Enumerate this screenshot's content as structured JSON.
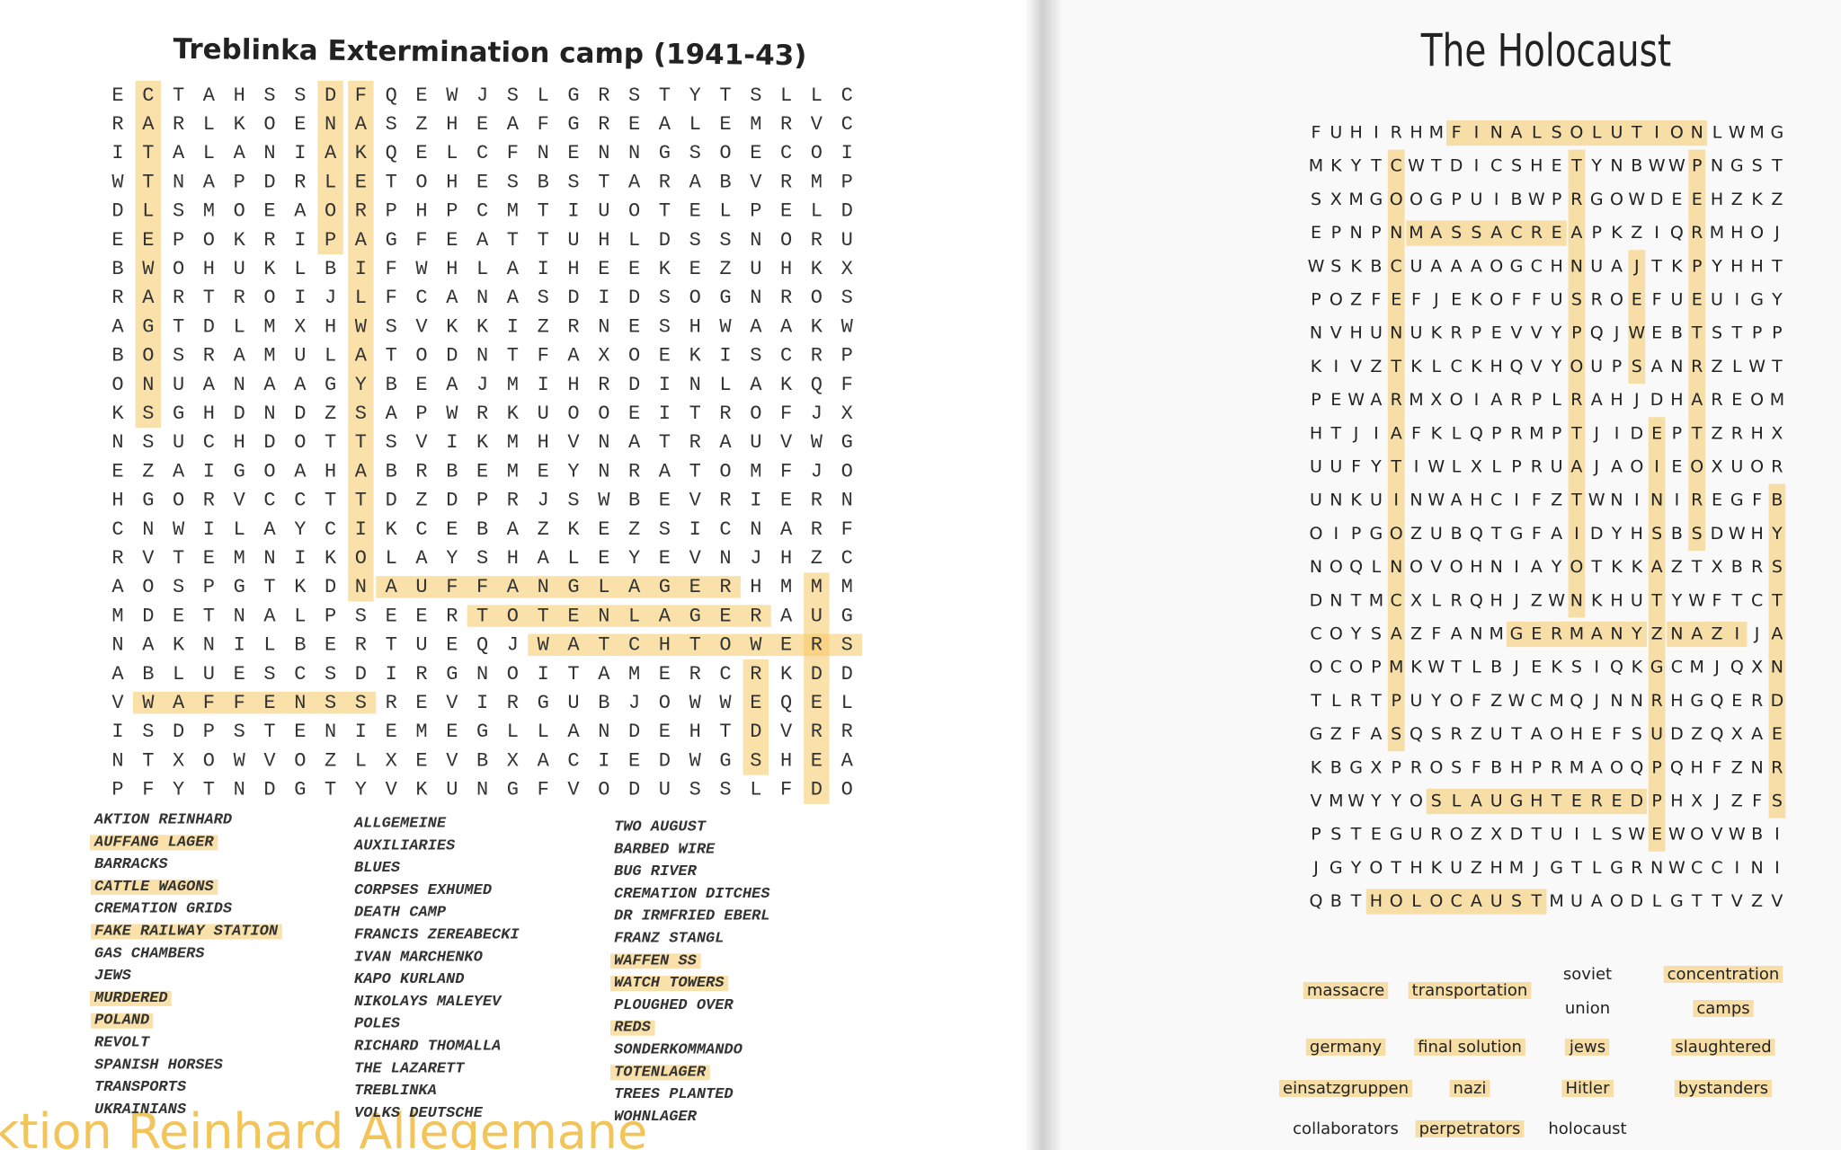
{
  "left": {
    "title": "Treblinka Extermination camp (1941-43)",
    "grid": [
      "ECTAHSSDFQEWJSLGRSTYTSLLC",
      "RARLKOENASZHEAFGREALEMRVC",
      "ITALANIAKQELCFNENNGSOECOI",
      "WTNAPDRLETOHESBSTARABVRMP",
      "DLSMOEAORPHPCMTIUOTELPELD",
      "EEPOKRIPAGFEATTUHLDSSNORU",
      "BWOHUKLBIFWHLAIHEEKEZUHKX",
      "RARTROIJLFCANASDIDSOGNROS",
      "AGTDLMXHWSVKKIZRNESHWAAKW",
      "BOSRAMULATODNTFAXOEKISCRP",
      "ONUANAAGYBEAJMIHRDINLAKQF",
      "KSGHDNDZSAPWRKUOOEITROFJX",
      "NSUCHDOTTSVIKMHVNATRAUVWG",
      "EZAIGOAHABRBEMEYNRATOMFJO",
      "HGORVCCTTDZDPRJSWBEVRIERN",
      "CNWILAYCIKCEBAZKEZSICNARF",
      "RVTEMNIKOLAYSHALEYEVNJHZC",
      "AOSPGTKDNAUFFANGLAGERHMMM",
      "MDETNALPSEERTOTENLAGERAUG",
      "NAKNILBERTUEQJWATCHTOWERS",
      "ABLUESCSDIRGNOITAMERCRKDD",
      "VWAFFENSSREVIRGUBJOWWEQEL",
      "ISDPSTENIEMEGLLANDEHTDVRR",
      "NTXOWVOZLXEVBXACIEDWGSHEA",
      "PFYTNDGTYVKUNGFVODUSSLFDO"
    ],
    "words": [
      [
        "AKTION REINHARD",
        "AUFFANG LAGER",
        "BARRACKS",
        "CATTLE WAGONS",
        "CREMATION GRIDS",
        "FAKE RAILWAY STATION",
        "GAS CHAMBERS",
        "JEWS",
        "MURDERED",
        "POLAND",
        "REVOLT",
        "SPANISH HORSES",
        "TRANSPORTS",
        "UKRAINIANS"
      ],
      [
        "ALLGEMEINE",
        "AUXILIARIES",
        "BLUES",
        "CORPSES EXHUMED",
        "DEATH CAMP",
        "FRANCIS ZEREABECKI",
        "IVAN MARCHENKO",
        "KAPO KURLAND",
        "NIKOLAYS MALEYEV",
        "POLES",
        "RICHARD THOMALLA",
        "THE LAZARETT",
        "TREBLINKA",
        "VOLKS DEUTSCHE"
      ],
      [
        "TWO AUGUST",
        "BARBED WIRE",
        "BUG RIVER",
        "CREMATION DITCHES",
        "DR IRMFRIED EBERL",
        "FRANZ STANGL",
        "WAFFEN SS",
        "WATCH TOWERS",
        "PLOUGHED OVER",
        "REDS",
        "SONDERKOMMANDO",
        "TOTENLAGER",
        "TREES PLANTED",
        "WOHNLAGER"
      ]
    ],
    "handwriting": "ktion Reinhard  Allegemane"
  },
  "right": {
    "title": "The Holocaust",
    "grid": [
      "FUHIRHMFINALSOLUTIONLWMG",
      "MKYTCWTDICSHETYNBWWPNGST",
      "SXMGOOGPUIBWPRGOWDEEHZKZ",
      "EPNPNMASSACREAPKZIQRMHOJ",
      "WSKBCUAAAOGCHNUAJTKPYHHT",
      "POZFEFJEKOFFUSROEFUEUIGY",
      "NVHUNUKRPEVVYPQJWEBTSTPP",
      "KIVZTKLCKHQVYOUPSANRZLWT",
      "PEWARMXOIARPLRAHJDHAREOM",
      "HTJIAFKLQPRMPTJIDEPTZRHX",
      "UUFYTIWLXLPRUAJAOIEOXUOR",
      "UNKUINWAHCIFZTWNINIREGFB",
      "OIPGOZUBQTGFAIDYHSBSDWHY",
      "NOQLNOVOHNIAYOTKKAZTXBRS",
      "DNTMCXLRQHJZWNKHUTYWFTCT",
      "COYSAZFANMGERMANYZNAZIJA",
      "OCOPMKWTLBJEKSIQKGCMJQXN",
      "TLRTPUYOFZWCMQJNNRHGQERD",
      "GZFASQSRZUTAOHEFSUDZQXAE",
      "KBGXPROSFBHPRMAOQPQHFZNR",
      "VMWYYOSLAUGHTEREDPHXJZFS",
      "PSTEGUROZXDTUILSWEWOVWBI",
      "JGYOTHKUZHMJGTLGRNWCCINI",
      "QBTHOLOCAUSTMUAODLGTTVZV"
    ],
    "words": [
      "massacre",
      "transportation",
      [
        "soviet",
        "union"
      ],
      [
        "concentration",
        "camps"
      ],
      "germany",
      "final solution",
      "jews",
      "slaughtered",
      "einsatzgruppen",
      "nazi",
      "Hitler",
      "bystanders",
      "collaborators",
      "perpetrators",
      "holocaust"
    ]
  }
}
